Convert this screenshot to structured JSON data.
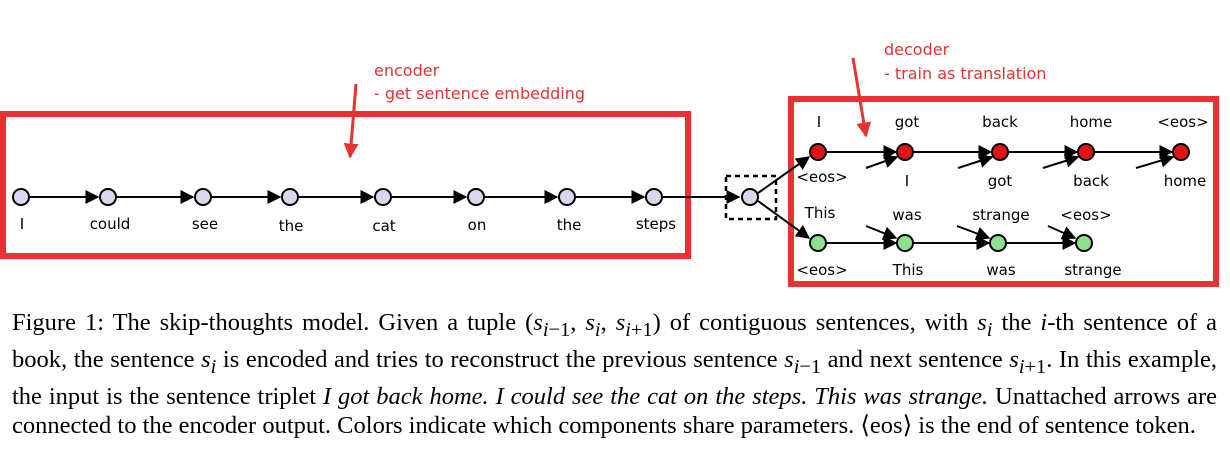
{
  "annotations": {
    "encoder_title": "encoder",
    "encoder_note": "- get sentence embedding",
    "decoder_title": "decoder",
    "decoder_note": "- train as translation"
  },
  "encoder": {
    "tokens": [
      "I",
      "could",
      "see",
      "the",
      "cat",
      "on",
      "the",
      "steps"
    ]
  },
  "decoder_prev": {
    "outputs": [
      "I",
      "got",
      "back",
      "home",
      "<eos>"
    ],
    "inputs": [
      "<eos>",
      "I",
      "got",
      "back",
      "home"
    ]
  },
  "decoder_next": {
    "outputs": [
      "This",
      "was",
      "strange",
      "<eos>"
    ],
    "inputs": [
      "<eos>",
      "This",
      "was",
      "strange"
    ]
  },
  "colors": {
    "annotation": "#e53333",
    "encoder_node": "#d8d8ee",
    "prev_decoder_node": "#e01414",
    "next_decoder_node": "#8ee08e"
  },
  "caption": {
    "p1": "Figure 1:  The skip-thoughts model. Given a tuple (",
    "tuple_math": "s",
    "p2": ") of contiguous sentences, with ",
    "p3": " the ",
    "p4": "-th sentence of a book, the sentence ",
    "p5": " is encoded and tries to reconstruct the previous sentence ",
    "p6": " and next sentence ",
    "p7": ".  In this example, the input is the sentence triplet ",
    "example": "I got back home.  I could see the cat on the steps.  This was strange.",
    "p8": "  Unattached arrows are connected to the encoder output. Colors indicate which components share parameters. ⟨eos⟩ is the end of sentence token."
  }
}
